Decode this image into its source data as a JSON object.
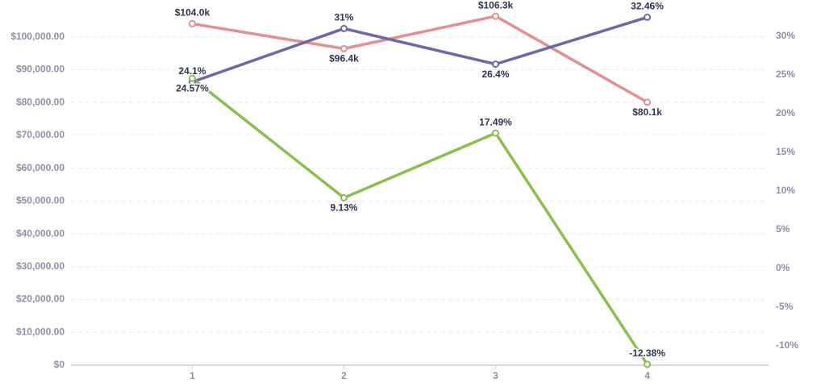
{
  "chart_data": {
    "type": "line",
    "x": [
      1,
      2,
      3,
      4
    ],
    "xlim": [
      0.2,
      4.8
    ],
    "xticks": [
      1,
      2,
      3,
      4
    ],
    "ylim": [
      0,
      110000
    ],
    "yticks": [
      {
        "value": 0,
        "label": "$0"
      },
      {
        "value": 10000,
        "label": "$10,000.00"
      },
      {
        "value": 20000,
        "label": "$20,000.00"
      },
      {
        "value": 30000,
        "label": "$30,000.00"
      },
      {
        "value": 40000,
        "label": "$40,000.00"
      },
      {
        "value": 50000,
        "label": "$50,000.00"
      },
      {
        "value": 60000,
        "label": "$60,000.00"
      },
      {
        "value": 70000,
        "label": "$70,000.00"
      },
      {
        "value": 80000,
        "label": "$80,000.00"
      },
      {
        "value": 90000,
        "label": "$90,000.00"
      },
      {
        "value": 100000,
        "label": "$100,000.00"
      }
    ],
    "y2lim": [
      -12.5,
      34.17
    ],
    "y2ticks": [
      {
        "value": -10,
        "label": "-10%"
      },
      {
        "value": -5,
        "label": "-5%"
      },
      {
        "value": 0,
        "label": "0%"
      },
      {
        "value": 5,
        "label": "5%"
      },
      {
        "value": 10,
        "label": "10%"
      },
      {
        "value": 15,
        "label": "15%"
      },
      {
        "value": 20,
        "label": "20%"
      },
      {
        "value": 25,
        "label": "25%"
      },
      {
        "value": 30,
        "label": "30%"
      }
    ],
    "grid": true,
    "series": [
      {
        "color": "#e58f8f",
        "values": [
          104000,
          96400,
          106300,
          80100
        ],
        "value_labels": [
          "$104.0k",
          "$96.4k",
          "$106.3k",
          "$80.1k"
        ]
      },
      {
        "color": "#6b67a8",
        "axis": "y2",
        "values": [
          24.1,
          31,
          26.4,
          32.46
        ],
        "value_labels": [
          "24.1%",
          "31%",
          "26.4%",
          "32.46%"
        ]
      },
      {
        "color": "#88bf4d",
        "axis": "y2",
        "values": [
          24.57,
          9.13,
          17.49,
          -12.38
        ],
        "value_labels": [
          "24.57%",
          "9.13%",
          "17.49%",
          "-12.38%"
        ]
      }
    ]
  }
}
